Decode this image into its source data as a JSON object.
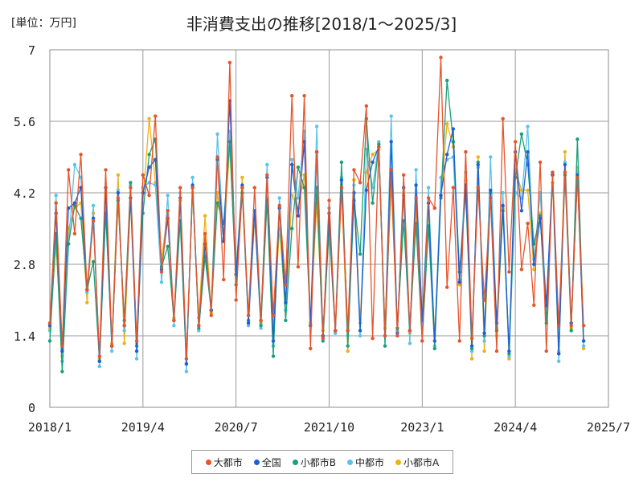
{
  "chart_data": {
    "type": "line",
    "title": "非消費支出の推移[2018/1～2025/3]",
    "unit_label": "[単位：万円]",
    "xlabel": "",
    "ylabel": "",
    "x_ticks": [
      "2018/1",
      "2019/4",
      "2020/7",
      "2021/10",
      "2023/1",
      "2024/4",
      "2025/7"
    ],
    "y_ticks": [
      "0",
      "1.4",
      "2.8",
      "4.2",
      "5.6",
      "7"
    ],
    "ylim": [
      0,
      7
    ],
    "grid": true,
    "legend_position": "bottom",
    "x": [
      "2018/1",
      "2018/2",
      "2018/3",
      "2018/4",
      "2018/5",
      "2018/6",
      "2018/7",
      "2018/8",
      "2018/9",
      "2018/10",
      "2018/11",
      "2018/12",
      "2019/1",
      "2019/2",
      "2019/3",
      "2019/4",
      "2019/5",
      "2019/6",
      "2019/7",
      "2019/8",
      "2019/9",
      "2019/10",
      "2019/11",
      "2019/12",
      "2020/1",
      "2020/2",
      "2020/3",
      "2020/4",
      "2020/5",
      "2020/6",
      "2020/7",
      "2020/8",
      "2020/9",
      "2020/10",
      "2020/11",
      "2020/12",
      "2021/1",
      "2021/2",
      "2021/3",
      "2021/4",
      "2021/5",
      "2021/6",
      "2021/7",
      "2021/8",
      "2021/9",
      "2021/10",
      "2021/11",
      "2021/12",
      "2022/1",
      "2022/2",
      "2022/3",
      "2022/4",
      "2022/5",
      "2022/6",
      "2022/7",
      "2022/8",
      "2022/9",
      "2022/10",
      "2022/11",
      "2022/12",
      "2023/1",
      "2023/2",
      "2023/3",
      "2023/4",
      "2023/5",
      "2023/6",
      "2023/7",
      "2023/8",
      "2023/9",
      "2023/10",
      "2023/11",
      "2023/12",
      "2024/1",
      "2024/2",
      "2024/3",
      "2024/4",
      "2024/5",
      "2024/6",
      "2024/7",
      "2024/8",
      "2024/9",
      "2024/10",
      "2024/11",
      "2024/12",
      "2025/1",
      "2025/2",
      "2025/3"
    ],
    "series": [
      {
        "name": "大都市",
        "color": "#e8542a",
        "values": [
          1.65,
          4.0,
          1.2,
          4.65,
          3.4,
          4.95,
          2.3,
          3.65,
          1.0,
          4.65,
          1.2,
          4.1,
          1.6,
          4.3,
          1.3,
          4.55,
          4.15,
          5.7,
          2.65,
          3.85,
          1.7,
          4.3,
          0.95,
          4.3,
          1.6,
          3.4,
          1.8,
          4.9,
          2.5,
          6.75,
          2.1,
          4.3,
          1.8,
          4.3,
          1.7,
          4.55,
          1.8,
          3.95,
          2.4,
          6.1,
          2.75,
          6.1,
          1.15,
          5.0,
          1.35,
          4.05,
          1.5,
          4.3,
          1.5,
          4.65,
          4.4,
          5.9,
          1.35,
          5.1,
          1.4,
          4.65,
          1.4,
          4.55,
          1.5,
          4.1,
          1.3,
          4.1,
          3.9,
          6.85,
          2.35,
          4.3,
          1.3,
          5.0,
          1.35,
          4.3,
          2.1,
          4.1,
          1.1,
          5.65,
          2.65,
          5.2,
          2.7,
          3.6,
          2.0,
          4.8,
          1.1,
          4.6,
          1.6,
          4.6,
          1.6,
          4.5,
          1.6
        ]
      },
      {
        "name": "全国",
        "color": "#1f5fd6",
        "values": [
          1.6,
          3.8,
          1.1,
          3.9,
          4.0,
          4.3,
          2.3,
          3.7,
          0.9,
          4.3,
          1.2,
          4.2,
          1.6,
          4.1,
          1.1,
          4.2,
          4.7,
          4.85,
          2.7,
          3.7,
          1.7,
          4.1,
          0.85,
          4.35,
          1.6,
          3.2,
          1.9,
          4.85,
          3.25,
          6.0,
          2.6,
          4.35,
          1.65,
          3.85,
          1.7,
          4.5,
          1.3,
          3.9,
          2.05,
          4.75,
          3.75,
          5.2,
          1.6,
          5.0,
          1.4,
          3.8,
          1.5,
          4.45,
          1.5,
          4.2,
          1.5,
          4.25,
          4.8,
          5.1,
          1.4,
          5.2,
          1.45,
          4.3,
          1.5,
          4.35,
          1.7,
          4.0,
          1.3,
          4.15,
          4.95,
          5.45,
          2.45,
          4.35,
          1.2,
          4.75,
          1.45,
          4.25,
          1.65,
          3.95,
          1.1,
          5.0,
          3.85,
          5.0,
          2.8,
          3.7,
          2.0,
          4.55,
          1.05,
          4.75,
          1.65,
          4.55,
          1.3
        ]
      },
      {
        "name": "小都市B",
        "color": "#1aa07a",
        "values": [
          1.3,
          3.4,
          0.7,
          3.2,
          3.95,
          3.7,
          2.3,
          2.85,
          0.9,
          3.8,
          1.2,
          4.05,
          1.7,
          4.4,
          1.2,
          3.8,
          4.95,
          5.25,
          2.75,
          3.15,
          1.7,
          3.65,
          0.85,
          4.3,
          1.55,
          2.95,
          1.9,
          4.0,
          3.6,
          5.2,
          2.4,
          4.2,
          1.7,
          3.85,
          1.6,
          4.05,
          1.0,
          3.95,
          1.7,
          3.5,
          4.7,
          4.3,
          1.6,
          4.3,
          1.3,
          3.55,
          1.5,
          4.8,
          1.2,
          4.05,
          3.0,
          5.65,
          4.0,
          5.15,
          1.2,
          4.65,
          1.55,
          3.65,
          1.5,
          3.6,
          1.3,
          3.55,
          1.15,
          4.1,
          6.4,
          5.2,
          2.65,
          4.2,
          1.15,
          4.8,
          1.4,
          4.2,
          1.5,
          3.85,
          1.05,
          4.5,
          5.35,
          4.75,
          3.2,
          3.75,
          1.65,
          4.55,
          1.05,
          4.55,
          1.5,
          5.25,
          1.3
        ]
      },
      {
        "name": "中都市",
        "color": "#5bc3ea",
        "values": [
          1.5,
          4.15,
          0.9,
          3.2,
          4.75,
          4.5,
          2.25,
          3.95,
          0.8,
          4.0,
          1.1,
          4.25,
          1.5,
          4.35,
          0.95,
          4.3,
          4.4,
          4.35,
          2.45,
          4.15,
          1.6,
          4.2,
          0.7,
          4.5,
          1.5,
          3.0,
          1.9,
          5.35,
          3.3,
          5.4,
          2.7,
          4.3,
          1.6,
          3.75,
          1.55,
          4.75,
          1.2,
          4.1,
          1.9,
          4.85,
          4.1,
          5.4,
          1.6,
          5.5,
          1.4,
          3.9,
          1.45,
          4.5,
          1.4,
          4.35,
          1.4,
          5.05,
          4.3,
          5.2,
          1.4,
          5.7,
          1.5,
          4.3,
          1.25,
          4.65,
          1.65,
          4.3,
          1.2,
          4.5,
          4.85,
          4.9,
          2.5,
          4.6,
          1.1,
          4.7,
          1.3,
          4.9,
          1.55,
          4.2,
          1.0,
          4.2,
          4.1,
          5.5,
          2.9,
          4.2,
          1.95,
          4.6,
          0.9,
          4.8,
          1.65,
          4.6,
          1.2
        ]
      },
      {
        "name": "小都市A",
        "color": "#efb214",
        "values": [
          1.55,
          3.2,
          1.0,
          3.5,
          3.9,
          4.0,
          2.05,
          3.8,
          0.95,
          3.85,
          1.25,
          4.55,
          1.25,
          4.1,
          1.25,
          4.0,
          5.65,
          4.4,
          2.9,
          3.85,
          1.75,
          4.05,
          0.95,
          4.2,
          1.75,
          3.75,
          1.85,
          4.2,
          3.3,
          5.1,
          2.6,
          4.5,
          1.7,
          3.7,
          1.65,
          4.1,
          1.5,
          3.5,
          1.9,
          4.15,
          3.9,
          4.55,
          1.65,
          4.0,
          1.5,
          3.5,
          1.45,
          4.3,
          1.1,
          4.45,
          1.65,
          4.6,
          4.95,
          5.05,
          1.55,
          4.35,
          1.55,
          4.15,
          1.45,
          3.9,
          1.75,
          3.85,
          1.4,
          4.15,
          5.55,
          5.1,
          2.4,
          4.45,
          0.95,
          4.9,
          1.1,
          4.2,
          1.4,
          3.9,
          0.95,
          4.65,
          4.25,
          4.25,
          2.7,
          3.8,
          1.95,
          4.4,
          1.1,
          5.0,
          1.55,
          4.7,
          1.15
        ]
      }
    ]
  }
}
